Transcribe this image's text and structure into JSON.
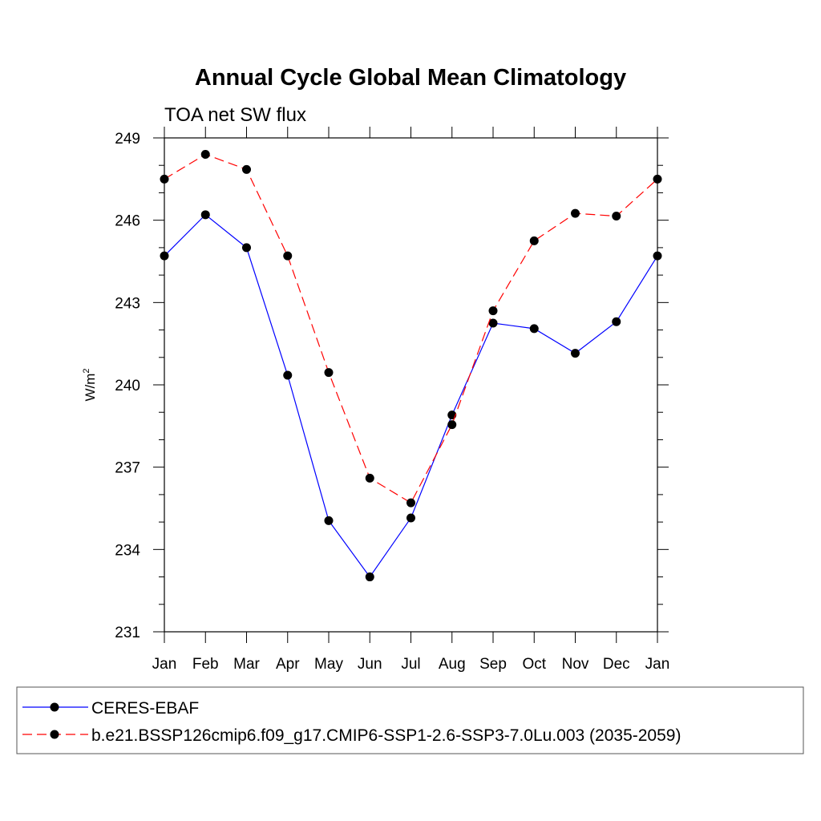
{
  "chart_data": {
    "type": "line",
    "title": "Annual Cycle Global Mean Climatology",
    "subtitle": "TOA net SW flux",
    "ylabel_base": "W/m",
    "ylabel_sup": "2",
    "xlabel": "",
    "categories": [
      "Jan",
      "Feb",
      "Mar",
      "Apr",
      "May",
      "Jun",
      "Jul",
      "Aug",
      "Sep",
      "Oct",
      "Nov",
      "Dec",
      "Jan"
    ],
    "yticks": [
      231,
      234,
      237,
      240,
      243,
      246,
      249
    ],
    "ylim": [
      231,
      249
    ],
    "grid": false,
    "legend_position": "bottom",
    "series": [
      {
        "name": "CERES-EBAF",
        "color": "#0000ff",
        "line_style": "solid",
        "values": [
          244.7,
          246.2,
          245.0,
          240.35,
          235.05,
          233.0,
          235.15,
          238.9,
          242.25,
          242.05,
          241.15,
          242.3,
          244.7
        ]
      },
      {
        "name": "b.e21.BSSP126cmip6.f09_g17.CMIP6-SSP1-2.6-SSP3-7.0Lu.003 (2035-2059)",
        "color": "#ff0000",
        "line_style": "dashed",
        "values": [
          247.5,
          248.4,
          247.85,
          244.7,
          240.45,
          236.6,
          235.7,
          238.55,
          242.7,
          245.25,
          246.25,
          246.15,
          247.5
        ]
      }
    ]
  }
}
